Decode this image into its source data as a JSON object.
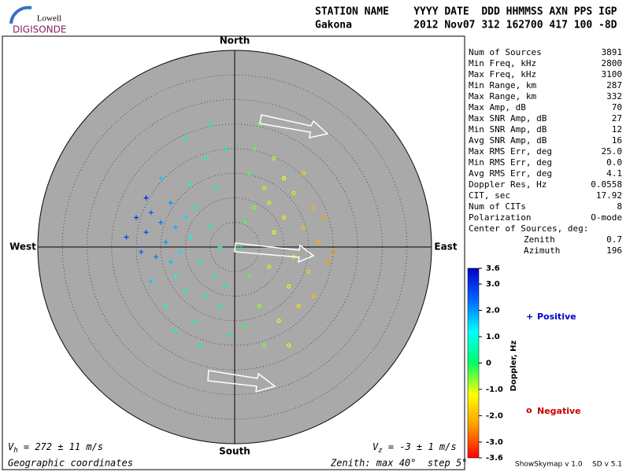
{
  "header": {
    "logo_top": "Lowell",
    "logo_bottom": "DIGISONDE",
    "line1": "STATION NAME    YYYY DATE  DDD HHMMSS AXN PPS IGP",
    "line2": "Gakona          2012 Nov07 312 162700 417 100 -8D"
  },
  "stats": {
    "rows": [
      [
        "Num of Sources",
        "3891"
      ],
      [
        "Min Freq, kHz",
        "2800"
      ],
      [
        "Max Freq, kHz",
        "3100"
      ],
      [
        "Min Range, km",
        "287"
      ],
      [
        "Max Range, km",
        "332"
      ],
      [
        "Max Amp, dB",
        "70"
      ],
      [
        "Max SNR Amp, dB",
        "27"
      ],
      [
        "Min SNR Amp, dB",
        "12"
      ],
      [
        "Avg SNR Amp, dB",
        "16"
      ],
      [
        "Max RMS Err, deg",
        "25.0"
      ],
      [
        "Min RMS Err, deg",
        "0.0"
      ],
      [
        "Avg RMS Err, deg",
        "4.1"
      ],
      [
        "Doppler Res, Hz",
        "0.0558"
      ],
      [
        "CIT, sec",
        "17.92"
      ],
      [
        "Num of CITs",
        "8"
      ],
      [
        "Polarization",
        "O-mode"
      ]
    ],
    "center_title": "Center of Sources, deg:",
    "center_rows": [
      [
        "Zenith",
        "0.7"
      ],
      [
        "Azimuth",
        "196"
      ]
    ]
  },
  "footer": {
    "vh": {
      "symbol": "V",
      "sub": "h",
      "text": " = 272 ± 11 m/s"
    },
    "vz": {
      "symbol": "V",
      "sub": "z",
      "text": " = -3 ± 1 m/s"
    },
    "coords": "Geographic coordinates",
    "zenith": "Zenith: max 40°  step 5°",
    "version1": "ShowSkymap v 1.0",
    "version2": "SD v 5.1"
  },
  "chart_data": {
    "type": "polar-scatter",
    "directions": {
      "north": "North",
      "south": "South",
      "east": "East",
      "west": "West"
    },
    "rlim": [
      0,
      40
    ],
    "rticks": [
      5,
      10,
      15,
      20,
      25,
      30,
      35,
      40
    ],
    "clim": [
      -3.6,
      3.6
    ],
    "colorbar_label": "Doppler, Hz",
    "cticks": [
      3.6,
      {
        "value": 3,
        "label": "3.0"
      },
      {
        "value": 2,
        "label": "2.0"
      },
      {
        "value": 1,
        "label": "1.0"
      },
      0,
      {
        "value": -1,
        "label": "-1.0"
      },
      {
        "value": -2,
        "label": "-2.0"
      },
      {
        "value": -3,
        "label": "-3.0"
      },
      -3.6
    ],
    "colormap": [
      "#ff0000",
      "#ff9900",
      "#ffff00",
      "#00ff66",
      "#00ffff",
      "#0066ff",
      "#0000cc"
    ],
    "series": [
      {
        "name": "Positive",
        "color": "#0000cc",
        "marker": "+",
        "x": [
          -17,
          -15,
          -18,
          -13,
          -12,
          -10,
          -14,
          -16,
          -11,
          -9,
          -8,
          -7,
          -12,
          -10,
          -6,
          -14,
          -5,
          -4,
          -8,
          -3,
          -20,
          -19,
          -15,
          -9,
          -6,
          -10,
          -2,
          -4,
          -3,
          -1,
          -7,
          -12,
          -2,
          -22,
          -17,
          -5,
          -18,
          -13
        ],
        "y": [
          7,
          5,
          3,
          9,
          4,
          6,
          1,
          -2,
          -1,
          2,
          8,
          -3,
          -6,
          -9,
          -10,
          -12,
          4,
          -6,
          -15,
          -12,
          6,
          -1,
          14,
          13,
          18,
          22,
          20,
          12,
          0,
          -18,
          -20,
          -17,
          -8,
          2,
          -7,
          25,
          10,
          -3
        ],
        "doppler": [
          2.6,
          2.3,
          2.8,
          2.0,
          1.8,
          1.5,
          2.0,
          2.2,
          1.4,
          1.2,
          1.0,
          0.9,
          1.1,
          0.8,
          0.5,
          0.9,
          0.6,
          0.4,
          0.6,
          0.3,
          3.0,
          2.5,
          1.6,
          0.9,
          0.7,
          0.8,
          0.2,
          0.4,
          0.2,
          0.1,
          0.4,
          0.7,
          0.1,
          2.9,
          1.6,
          0.5,
          3.2,
          1.7
        ]
      },
      {
        "name": "Negative",
        "color": "#cc0000",
        "marker": "o",
        "x": [
          2,
          4,
          6,
          8,
          10,
          12,
          14,
          16,
          15,
          11,
          7,
          5,
          9,
          13,
          17,
          19,
          3,
          2,
          6,
          10,
          8,
          4,
          12,
          18,
          20,
          16,
          11,
          1,
          5,
          14,
          7,
          3
        ],
        "y": [
          5,
          8,
          12,
          3,
          6,
          -2,
          4,
          8,
          -5,
          -8,
          -4,
          -12,
          -15,
          -12,
          1,
          -3,
          -6,
          -16,
          -20,
          14,
          18,
          20,
          11,
          6,
          -1,
          -10,
          -20,
          0,
          25,
          15,
          9,
          15
        ],
        "doppler": [
          -0.3,
          -0.6,
          -0.9,
          -1.2,
          -1.4,
          -1.6,
          -1.9,
          -2.1,
          -1.8,
          -1.3,
          -0.9,
          -0.7,
          -1.0,
          -1.5,
          -2.2,
          -2.4,
          -0.4,
          -0.2,
          -0.6,
          -1.2,
          -0.8,
          -0.4,
          -1.5,
          -2.3,
          -2.6,
          -2.0,
          -1.1,
          -0.1,
          -0.5,
          -1.7,
          -1.0,
          -0.3
        ]
      }
    ]
  }
}
